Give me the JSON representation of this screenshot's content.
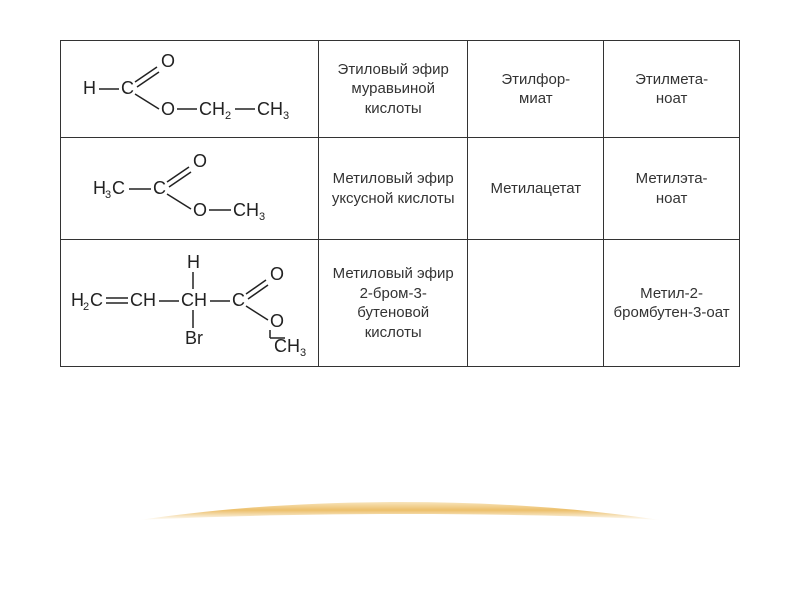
{
  "table": {
    "border_color": "#333333",
    "background": "#ffffff",
    "rows": [
      {
        "formula_svg_key": "ethylformate",
        "col2": "Этиловый эфир муравьиной кислоты",
        "col3": "Этилфор-\nмиат",
        "col4": "Этилмета-\nноат"
      },
      {
        "formula_svg_key": "methylacetate",
        "col2": "Метиловый эфир уксусной кислоты",
        "col3": "Метилацетат",
        "col4": "Метилэта-\nноат"
      },
      {
        "formula_svg_key": "methyl2bromobutenoate",
        "col2": "Метиловый эфир 2-бром-3-бутеновой кислоты",
        "col3": "",
        "col4": "Метил-2-бромбутен-3-оат"
      }
    ]
  },
  "swoosh": {
    "gradient": [
      "#f3c97a",
      "#e9a93c",
      "#f6dca8"
    ],
    "opacity": 0.9
  }
}
